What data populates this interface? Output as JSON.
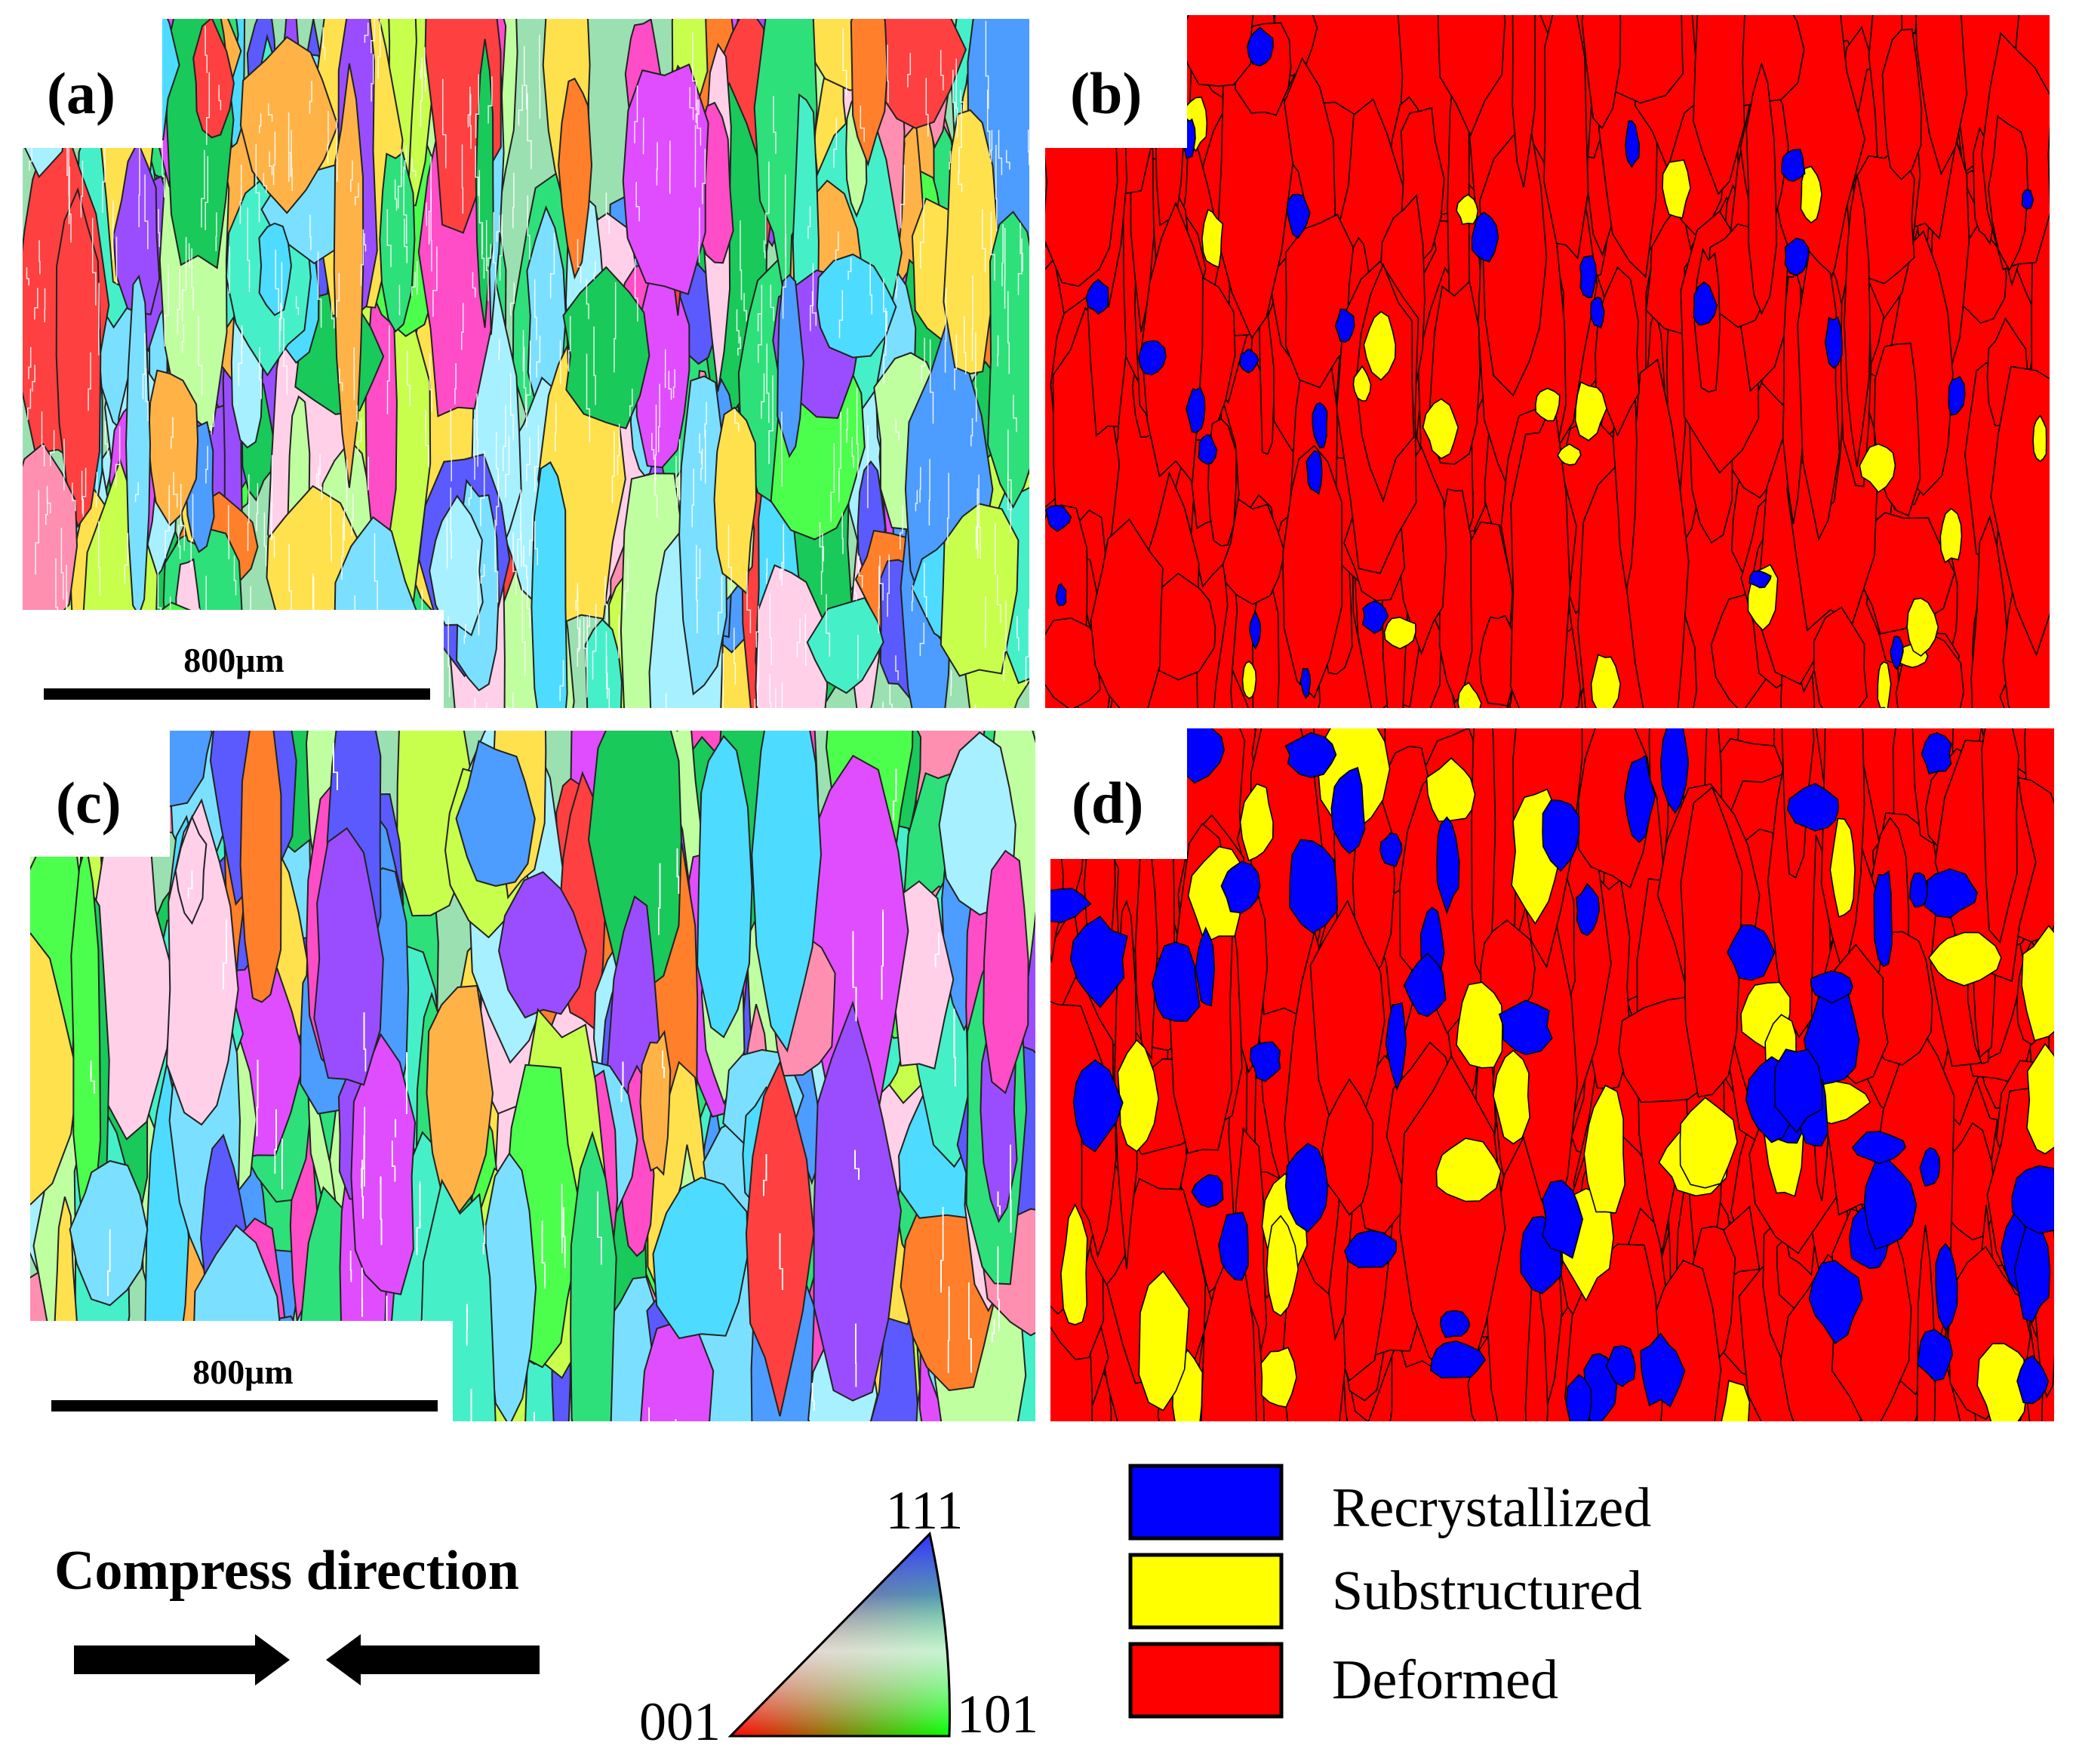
{
  "panels": {
    "a": {
      "label": "(a)",
      "kind": "ipf-map",
      "scale_bar": "800μm"
    },
    "b": {
      "label": "(b)",
      "kind": "recrystallization-map"
    },
    "c": {
      "label": "(c)",
      "kind": "ipf-map",
      "scale_bar": "800μm"
    },
    "d": {
      "label": "(d)",
      "kind": "recrystallization-map"
    }
  },
  "compress_direction": {
    "label": "Compress direction"
  },
  "ipf_key": {
    "top": "111",
    "left": "001",
    "right": "101"
  },
  "legend": {
    "items": [
      {
        "label": "Recrystallized",
        "color": "#0000ff"
      },
      {
        "label": "Substructured",
        "color": "#ffff00"
      },
      {
        "label": "Deformed",
        "color": "#ff0000"
      }
    ]
  },
  "colors": {
    "deformed": "#ff0000",
    "substructured": "#ffff00",
    "recrystallized": "#0000ff",
    "boundary": "#000000"
  }
}
